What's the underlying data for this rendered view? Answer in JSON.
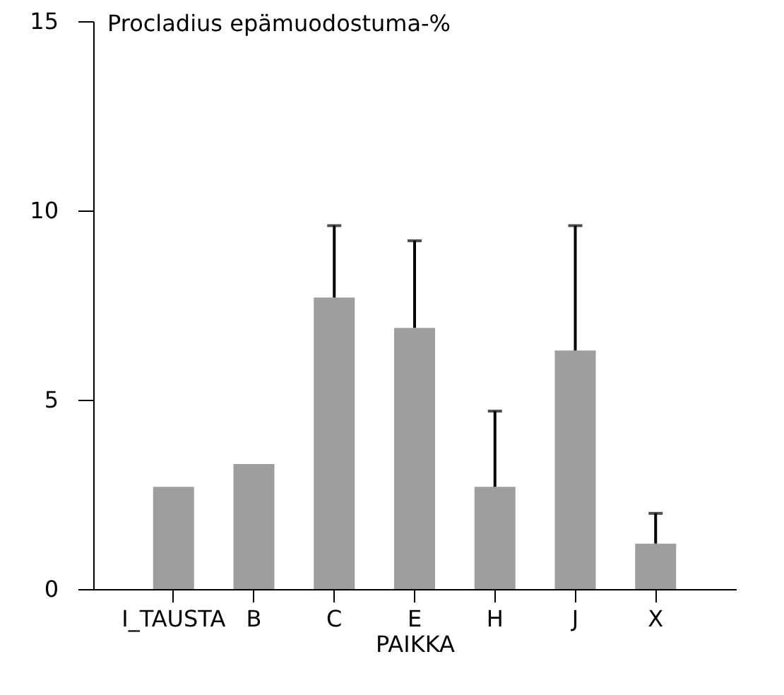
{
  "chart_data": {
    "type": "bar",
    "title": "Procladius epämuodostuma-%",
    "xlabel": "PAIKKA",
    "categories": [
      "I_TAUSTA",
      "B",
      "C",
      "E",
      "H",
      "J",
      "X"
    ],
    "values": [
      2.7,
      3.3,
      7.7,
      6.9,
      2.7,
      6.3,
      1.2
    ],
    "errors": [
      null,
      null,
      [
        7.7,
        9.6
      ],
      [
        6.9,
        9.2
      ],
      [
        2.7,
        4.7
      ],
      [
        6.3,
        9.6
      ],
      [
        1.2,
        2.0
      ]
    ],
    "color": "#9d9ea0",
    "ylim": [
      0,
      15
    ],
    "yticks": [
      0,
      5,
      10,
      15
    ],
    "grid": false
  }
}
